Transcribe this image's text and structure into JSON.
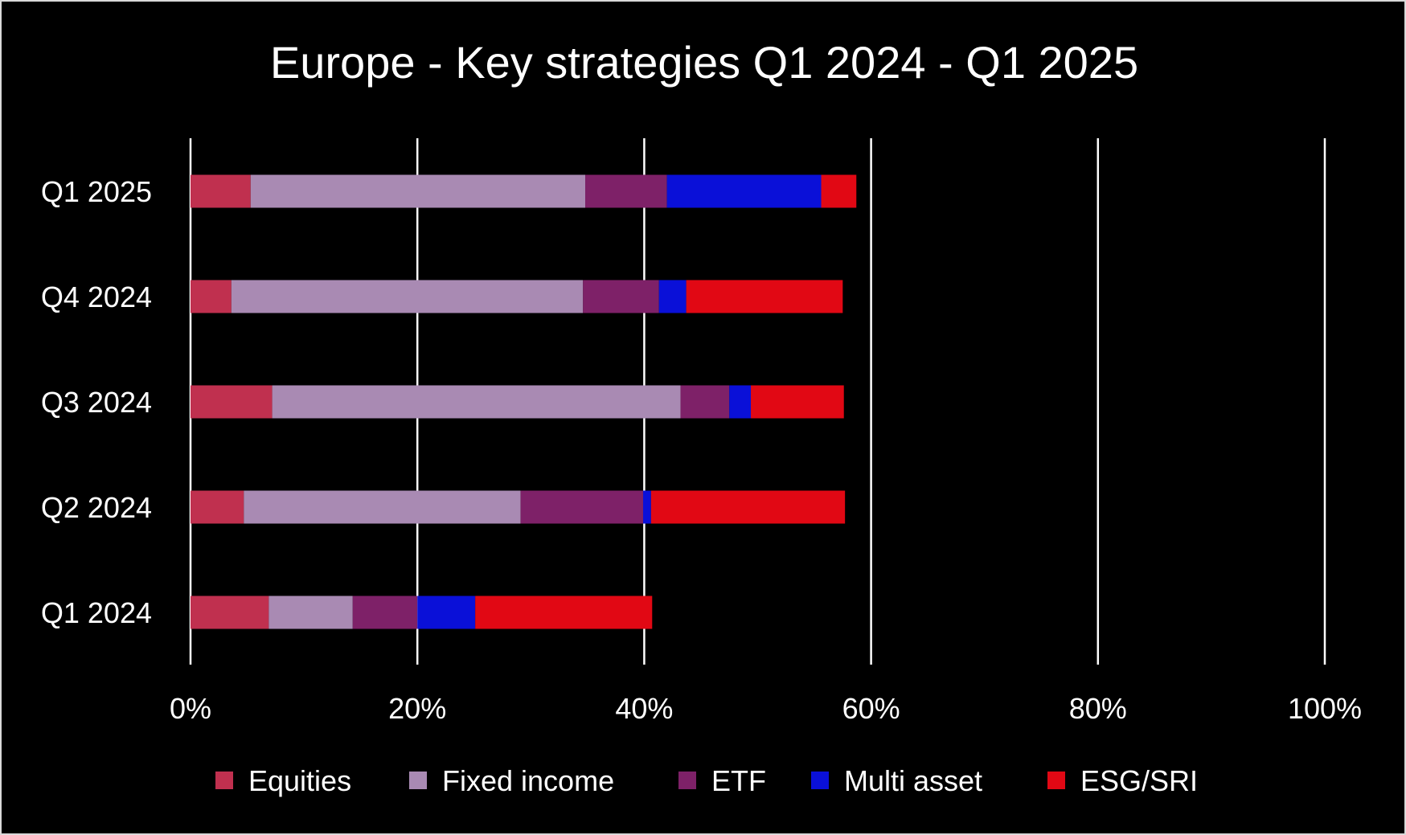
{
  "chart_data": {
    "type": "bar",
    "orientation": "horizontal",
    "stacked": true,
    "title": "Europe - Key strategies Q1 2024 - Q1 2025",
    "categories": [
      "Q1 2025",
      "Q4 2024",
      "Q3 2024",
      "Q2 2024",
      "Q1 2024"
    ],
    "series": [
      {
        "name": "Equities",
        "color": "#c0304f",
        "values": [
          5.3,
          3.6,
          7.2,
          4.7,
          6.9
        ]
      },
      {
        "name": "Fixed income",
        "color": "#a98ab3",
        "values": [
          29.5,
          31.0,
          36.0,
          24.4,
          7.4
        ]
      },
      {
        "name": "ETF",
        "color": "#7e2168",
        "values": [
          7.2,
          6.7,
          4.3,
          10.8,
          5.7
        ]
      },
      {
        "name": "Multi asset",
        "color": "#0a10d8",
        "values": [
          13.6,
          2.4,
          1.9,
          0.7,
          5.1
        ]
      },
      {
        "name": "ESG/SRI",
        "color": "#e10814",
        "values": [
          3.1,
          13.8,
          8.2,
          17.1,
          15.6
        ]
      }
    ],
    "xlim": [
      0,
      100
    ],
    "xticks": [
      "0%",
      "20%",
      "40%",
      "60%",
      "80%",
      "100%"
    ],
    "xlabel": "",
    "ylabel": "",
    "grid": true,
    "legend_position": "bottom"
  }
}
